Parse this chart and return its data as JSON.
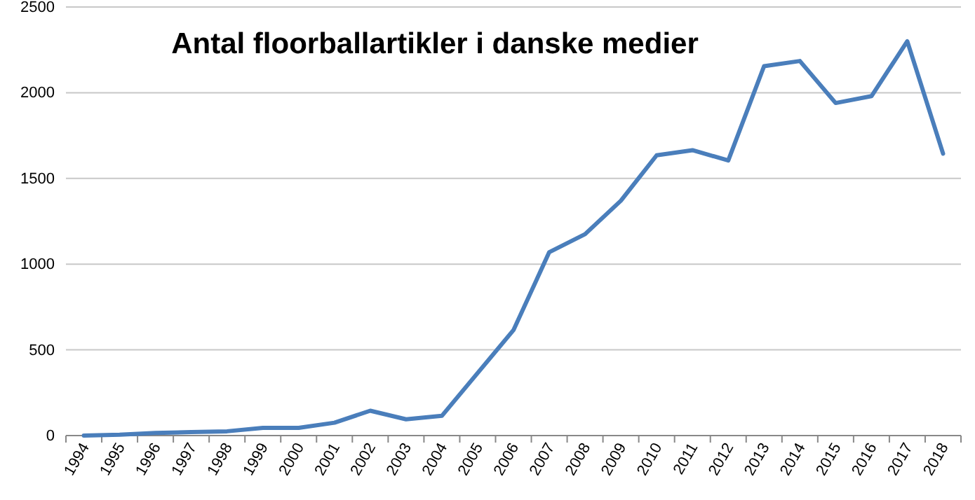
{
  "chart_data": {
    "type": "line",
    "title": "Antal floorballartikler i danske medier",
    "categories": [
      "1994",
      "1995",
      "1996",
      "1997",
      "1998",
      "1999",
      "2000",
      "2001",
      "2002",
      "2003",
      "2004",
      "2005",
      "2006",
      "2007",
      "2008",
      "2009",
      "2010",
      "2011",
      "2012",
      "2013",
      "2014",
      "2015",
      "2016",
      "2017",
      "2018"
    ],
    "series": [
      {
        "color": "#4a7ebb",
        "values": [
          0,
          5,
          15,
          20,
          25,
          45,
          45,
          75,
          145,
          95,
          115,
          365,
          615,
          1070,
          1175,
          1370,
          1635,
          1665,
          1605,
          2155,
          2185,
          1940,
          1980,
          2300,
          1645
        ]
      }
    ],
    "ylim": [
      0,
      2500
    ],
    "yticks": [
      0,
      500,
      1000,
      1500,
      2000,
      2500
    ],
    "grid": "y",
    "legend": false,
    "marker": "none",
    "line_style": "solid"
  }
}
